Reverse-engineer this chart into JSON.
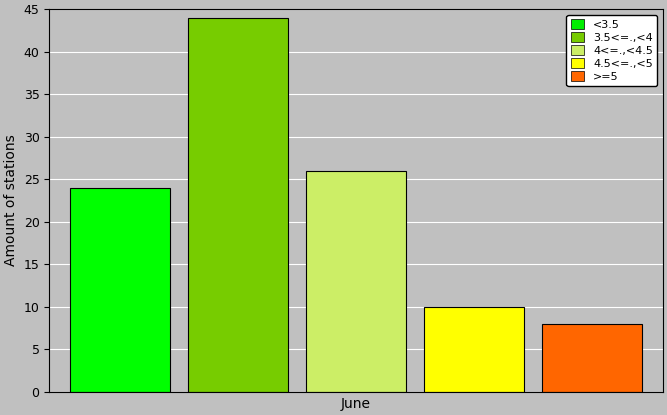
{
  "categories": [
    "<3.5",
    "3.5<=.,<4",
    "4<=.,<4.5",
    "4.5<=.,<5",
    ">=5"
  ],
  "values": [
    24,
    44,
    26,
    10,
    8
  ],
  "bar_colors": [
    "#00ff00",
    "#77cc00",
    "#ccee66",
    "#ffff00",
    "#ff6600"
  ],
  "legend_labels": [
    "<3.5",
    "3.5<=.,<4",
    "4<=.,<4.5",
    "4.5<=.,<5",
    ">=5"
  ],
  "legend_colors": [
    "#00ee00",
    "#77cc00",
    "#ccee66",
    "#ffff00",
    "#ff6600"
  ],
  "xlabel": "June",
  "ylabel": "Amount of stations",
  "ylim": [
    0,
    45
  ],
  "yticks": [
    0,
    5,
    10,
    15,
    20,
    25,
    30,
    35,
    40,
    45
  ],
  "background_color": "#c0c0c0",
  "plot_bg_color": "#c0c0c0",
  "grid_color": "#a0a0a0",
  "bar_width": 0.85,
  "bar_spacing": 0.02
}
